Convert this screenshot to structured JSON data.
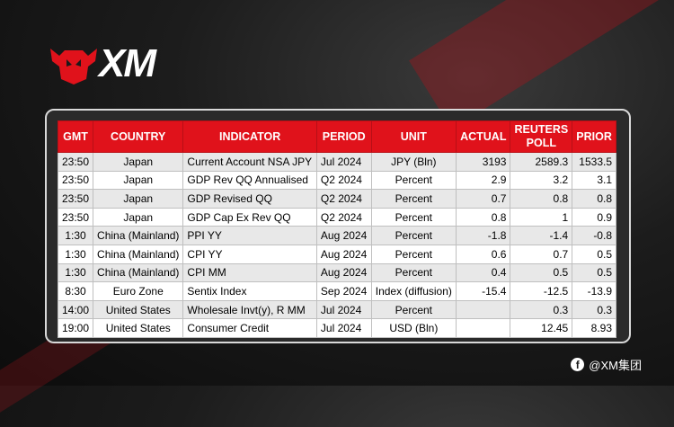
{
  "brand": {
    "logo_text": "XM"
  },
  "table": {
    "headers": {
      "gmt": "GMT",
      "country": "COUNTRY",
      "indicator": "INDICATOR",
      "period": "PERIOD",
      "unit": "UNIT",
      "actual": "ACTUAL",
      "poll": "REUTERS POLL",
      "prior": "PRIOR"
    },
    "rows": [
      {
        "gmt": "23:50",
        "country": "Japan",
        "indicator": "Current Account NSA JPY",
        "period": "Jul 2024",
        "unit": "JPY (Bln)",
        "actual": "3193",
        "poll": "2589.3",
        "prior": "1533.5"
      },
      {
        "gmt": "23:50",
        "country": "Japan",
        "indicator": "GDP Rev QQ Annualised",
        "period": "Q2 2024",
        "unit": "Percent",
        "actual": "2.9",
        "poll": "3.2",
        "prior": "3.1"
      },
      {
        "gmt": "23:50",
        "country": "Japan",
        "indicator": "GDP Revised QQ",
        "period": "Q2 2024",
        "unit": "Percent",
        "actual": "0.7",
        "poll": "0.8",
        "prior": "0.8"
      },
      {
        "gmt": "23:50",
        "country": "Japan",
        "indicator": "GDP Cap Ex Rev QQ",
        "period": "Q2 2024",
        "unit": "Percent",
        "actual": "0.8",
        "poll": "1",
        "prior": "0.9"
      },
      {
        "gmt": "1:30",
        "country": "China (Mainland)",
        "indicator": "PPI YY",
        "period": "Aug 2024",
        "unit": "Percent",
        "actual": "-1.8",
        "poll": "-1.4",
        "prior": "-0.8"
      },
      {
        "gmt": "1:30",
        "country": "China (Mainland)",
        "indicator": "CPI YY",
        "period": "Aug 2024",
        "unit": "Percent",
        "actual": "0.6",
        "poll": "0.7",
        "prior": "0.5"
      },
      {
        "gmt": "1:30",
        "country": "China (Mainland)",
        "indicator": "CPI MM",
        "period": "Aug 2024",
        "unit": "Percent",
        "actual": "0.4",
        "poll": "0.5",
        "prior": "0.5"
      },
      {
        "gmt": "8:30",
        "country": "Euro Zone",
        "indicator": "Sentix Index",
        "period": "Sep 2024",
        "unit": "Index (diffusion)",
        "actual": "-15.4",
        "poll": "-12.5",
        "prior": "-13.9"
      },
      {
        "gmt": "14:00",
        "country": "United States",
        "indicator": "Wholesale Invt(y), R MM",
        "period": "Jul 2024",
        "unit": "Percent",
        "actual": "",
        "poll": "0.3",
        "prior": "0.3"
      },
      {
        "gmt": "19:00",
        "country": "United States",
        "indicator": "Consumer Credit",
        "period": "Jul 2024",
        "unit": "USD (Bln)",
        "actual": "",
        "poll": "12.45",
        "prior": "8.93"
      }
    ]
  },
  "footer": {
    "icon": "facebook-icon",
    "handle": "@XM集团"
  },
  "colors": {
    "accent": "#e0121b",
    "alt_row": "#e8e8e8"
  }
}
